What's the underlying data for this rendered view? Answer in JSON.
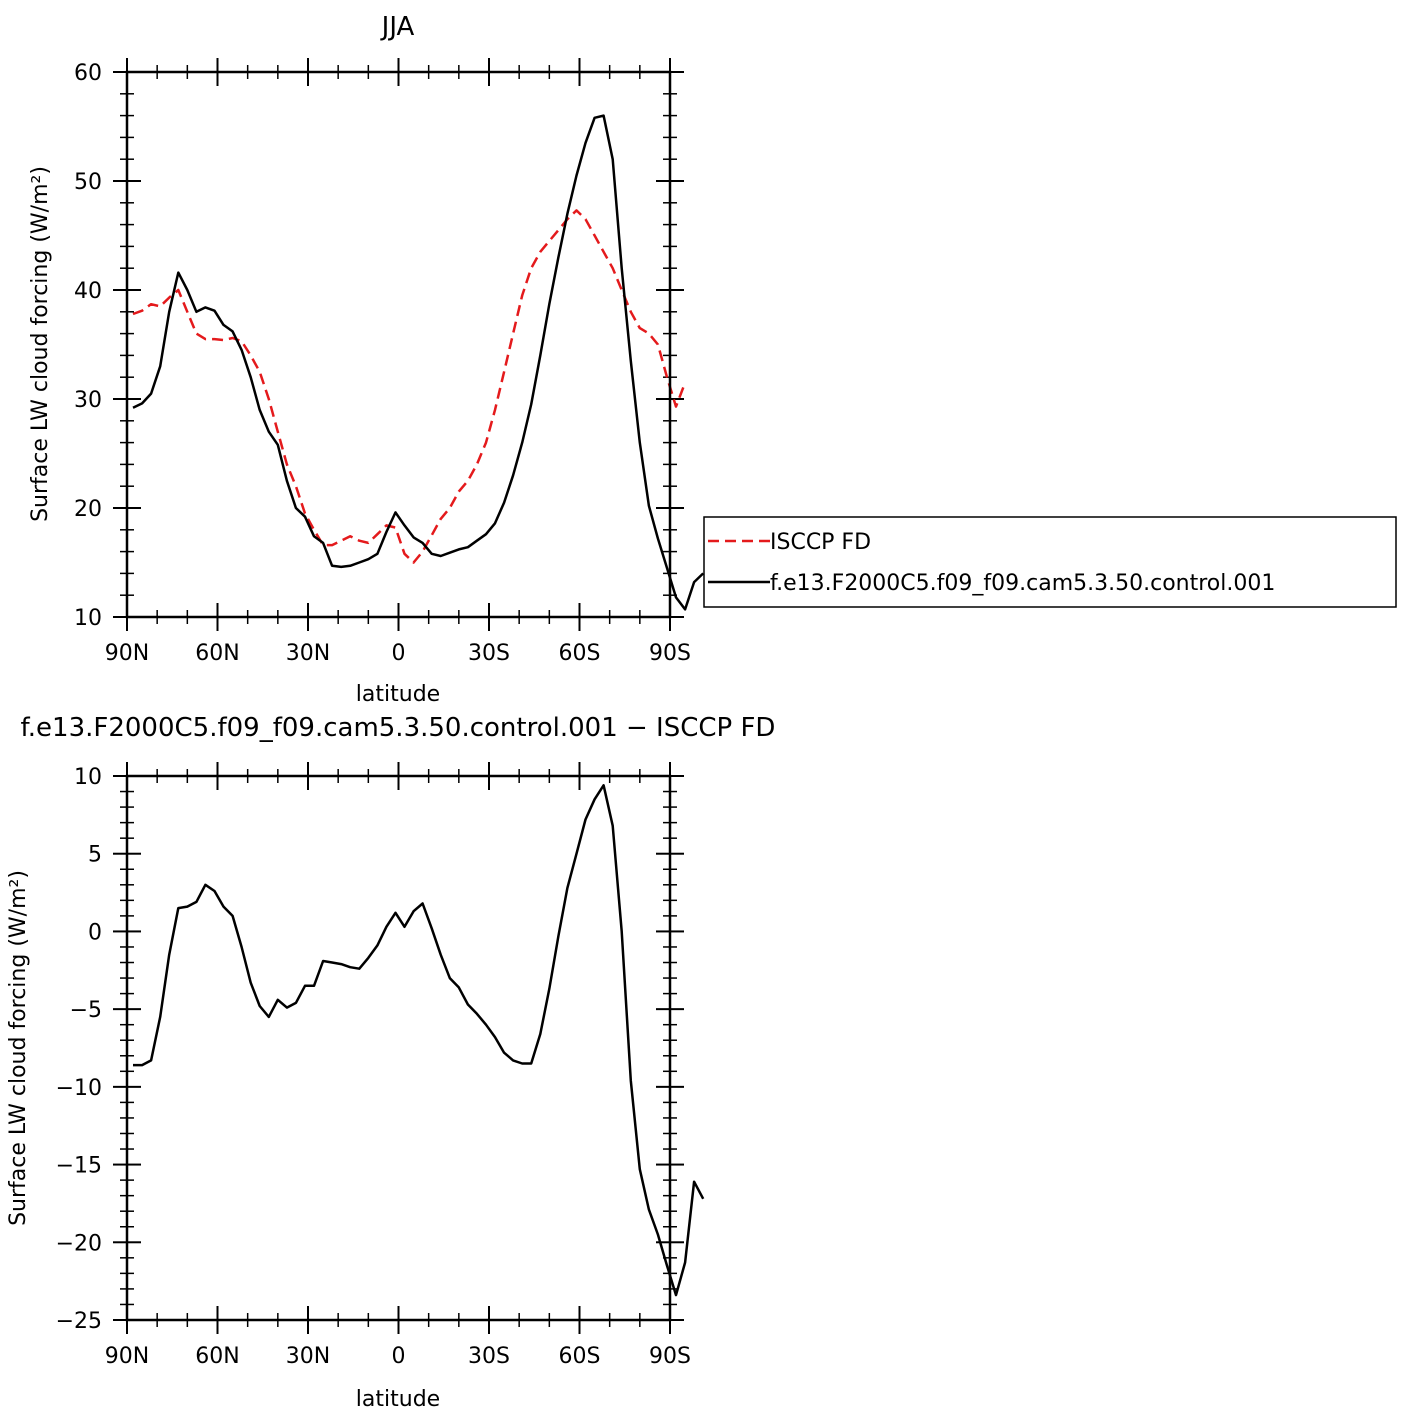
{
  "chart_data": [
    {
      "type": "line",
      "title": "JJA",
      "xlabel": "latitude",
      "ylabel": "Surface LW cloud forcing (W/m²)",
      "xlim": [
        90,
        -90
      ],
      "ylim": [
        10,
        60
      ],
      "xticks": [
        90,
        60,
        30,
        0,
        -30,
        -60,
        -90
      ],
      "xtick_labels": [
        "90N",
        "60N",
        "30N",
        "0",
        "30S",
        "60S",
        "90S"
      ],
      "yticks": [
        10,
        20,
        30,
        40,
        50,
        60
      ],
      "ytick_labels": [
        "10",
        "20",
        "30",
        "40",
        "50",
        "60"
      ],
      "legend": "right",
      "series": [
        {
          "name": "ISCCP FD",
          "color": "#e41a1c",
          "style": "dashed",
          "points": [
            [
              88,
              37.8
            ],
            [
              85,
              38.1
            ],
            [
              82,
              38.7
            ],
            [
              79,
              38.5
            ],
            [
              76,
              39.3
            ],
            [
              73,
              40
            ],
            [
              70,
              38
            ],
            [
              67,
              36
            ],
            [
              64,
              35.5
            ],
            [
              61,
              35.5
            ],
            [
              58,
              35.4
            ],
            [
              55,
              35.6
            ],
            [
              52,
              35.3
            ],
            [
              49,
              34
            ],
            [
              46,
              32.5
            ],
            [
              43,
              30
            ],
            [
              40,
              27
            ],
            [
              37,
              24
            ],
            [
              34,
              22
            ],
            [
              31,
              19.5
            ],
            [
              28,
              18
            ],
            [
              25,
              16.6
            ],
            [
              22,
              16.6
            ],
            [
              19,
              17
            ],
            [
              16,
              17.4
            ],
            [
              13,
              17
            ],
            [
              10,
              16.8
            ],
            [
              7,
              17.6
            ],
            [
              4,
              18.4
            ],
            [
              1,
              18.2
            ],
            [
              -2,
              15.8
            ],
            [
              -5,
              15
            ],
            [
              -8,
              16
            ],
            [
              -11,
              17.5
            ],
            [
              -14,
              19
            ],
            [
              -17,
              20
            ],
            [
              -20,
              21.5
            ],
            [
              -23,
              22.5
            ],
            [
              -26,
              24
            ],
            [
              -29,
              26
            ],
            [
              -32,
              29
            ],
            [
              -35,
              32.5
            ],
            [
              -38,
              36
            ],
            [
              -41,
              39.5
            ],
            [
              -44,
              42
            ],
            [
              -47,
              43.5
            ],
            [
              -50,
              44.5
            ],
            [
              -53,
              45.5
            ],
            [
              -56,
              46.5
            ],
            [
              -59,
              47.3
            ],
            [
              -62,
              46.5
            ],
            [
              -65,
              45
            ],
            [
              -68,
              43.5
            ],
            [
              -71,
              42
            ],
            [
              -74,
              40
            ],
            [
              -77,
              38
            ],
            [
              -80,
              36.5
            ],
            [
              -83,
              36
            ],
            [
              -86,
              35
            ],
            [
              -89,
              32
            ],
            [
              -92,
              29.3
            ],
            [
              -95,
              31.5
            ]
          ]
        },
        {
          "name": "f.e13.F2000C5.f09_f09.cam5.3.50.control.001",
          "color": "#000000",
          "style": "solid",
          "points": [
            [
              88,
              29.2
            ],
            [
              85,
              29.6
            ],
            [
              82,
              30.5
            ],
            [
              79,
              33
            ],
            [
              76,
              38
            ],
            [
              73,
              41.6
            ],
            [
              70,
              40
            ],
            [
              67,
              38
            ],
            [
              64,
              38.4
            ],
            [
              61,
              38.1
            ],
            [
              58,
              36.8
            ],
            [
              55,
              36.2
            ],
            [
              52,
              34.5
            ],
            [
              49,
              32
            ],
            [
              46,
              29
            ],
            [
              43,
              27
            ],
            [
              40,
              25.8
            ],
            [
              37,
              22.5
            ],
            [
              34,
              20
            ],
            [
              31,
              19.2
            ],
            [
              28,
              17.4
            ],
            [
              25,
              16.8
            ],
            [
              22,
              14.7
            ],
            [
              19,
              14.6
            ],
            [
              16,
              14.7
            ],
            [
              13,
              15
            ],
            [
              10,
              15.3
            ],
            [
              7,
              15.8
            ],
            [
              4,
              17.8
            ],
            [
              1,
              19.6
            ],
            [
              -2,
              18.4
            ],
            [
              -5,
              17.3
            ],
            [
              -8,
              16.8
            ],
            [
              -11,
              15.8
            ],
            [
              -14,
              15.6
            ],
            [
              -17,
              15.9
            ],
            [
              -20,
              16.2
            ],
            [
              -23,
              16.4
            ],
            [
              -26,
              17
            ],
            [
              -29,
              17.6
            ],
            [
              -32,
              18.6
            ],
            [
              -35,
              20.5
            ],
            [
              -38,
              23
            ],
            [
              -41,
              26
            ],
            [
              -44,
              29.5
            ],
            [
              -47,
              34
            ],
            [
              -50,
              38.7
            ],
            [
              -53,
              43
            ],
            [
              -56,
              47
            ],
            [
              -59,
              50.5
            ],
            [
              -62,
              53.5
            ],
            [
              -65,
              55.8
            ],
            [
              -68,
              56
            ],
            [
              -71,
              52
            ],
            [
              -74,
              42
            ],
            [
              -77,
              33.5
            ],
            [
              -80,
              26
            ],
            [
              -83,
              20.2
            ],
            [
              -86,
              17.2
            ],
            [
              -89,
              14.5
            ],
            [
              -92,
              11.8
            ],
            [
              -95,
              10.7
            ],
            [
              -98,
              13.2
            ],
            [
              -101,
              14
            ]
          ]
        }
      ]
    },
    {
      "type": "line",
      "title": "f.e13.F2000C5.f09_f09.cam5.3.50.control.001 − ISCCP FD",
      "xlabel": "latitude",
      "ylabel": "Surface LW cloud forcing (W/m²)",
      "xlim": [
        90,
        -90
      ],
      "ylim": [
        -25,
        10
      ],
      "xticks": [
        90,
        60,
        30,
        0,
        -30,
        -60,
        -90
      ],
      "xtick_labels": [
        "90N",
        "60N",
        "30N",
        "0",
        "30S",
        "60S",
        "90S"
      ],
      "yticks": [
        -25,
        -20,
        -15,
        -10,
        -5,
        0,
        5,
        10
      ],
      "ytick_labels": [
        "−25",
        "−20",
        "−15",
        "−10",
        "−5",
        "0",
        "5",
        "10"
      ],
      "series": [
        {
          "name": "",
          "color": "#000000",
          "style": "solid",
          "points": [
            [
              88,
              -8.6
            ],
            [
              85,
              -8.6
            ],
            [
              82,
              -8.3
            ],
            [
              79,
              -5.5
            ],
            [
              76,
              -1.5
            ],
            [
              73,
              1.5
            ],
            [
              70,
              1.6
            ],
            [
              67,
              1.9
            ],
            [
              64,
              3
            ],
            [
              61,
              2.6
            ],
            [
              58,
              1.6
            ],
            [
              55,
              1
            ],
            [
              52,
              -1
            ],
            [
              49,
              -3.3
            ],
            [
              46,
              -4.8
            ],
            [
              43,
              -5.5
            ],
            [
              40,
              -4.4
            ],
            [
              37,
              -4.9
            ],
            [
              34,
              -4.6
            ],
            [
              31,
              -3.5
            ],
            [
              28,
              -3.5
            ],
            [
              25,
              -1.9
            ],
            [
              22,
              -2
            ],
            [
              19,
              -2.1
            ],
            [
              16,
              -2.3
            ],
            [
              13,
              -2.4
            ],
            [
              10,
              -1.7
            ],
            [
              7,
              -0.9
            ],
            [
              4,
              0.3
            ],
            [
              1,
              1.2
            ],
            [
              -2,
              0.3
            ],
            [
              -5,
              1.3
            ],
            [
              -8,
              1.8
            ],
            [
              -11,
              0.2
            ],
            [
              -14,
              -1.5
            ],
            [
              -17,
              -3
            ],
            [
              -20,
              -3.6
            ],
            [
              -23,
              -4.7
            ],
            [
              -26,
              -5.3
            ],
            [
              -29,
              -6
            ],
            [
              -32,
              -6.8
            ],
            [
              -35,
              -7.8
            ],
            [
              -38,
              -8.3
            ],
            [
              -41,
              -8.5
            ],
            [
              -44,
              -8.5
            ],
            [
              -47,
              -6.6
            ],
            [
              -50,
              -3.7
            ],
            [
              -53,
              -0.3
            ],
            [
              -56,
              2.8
            ],
            [
              -59,
              5
            ],
            [
              -62,
              7.2
            ],
            [
              -65,
              8.5
            ],
            [
              -68,
              9.4
            ],
            [
              -71,
              6.8
            ],
            [
              -74,
              0
            ],
            [
              -77,
              -9.6
            ],
            [
              -80,
              -15.3
            ],
            [
              -83,
              -17.9
            ],
            [
              -86,
              -19.5
            ],
            [
              -89,
              -21.5
            ],
            [
              -92,
              -23.4
            ],
            [
              -95,
              -21.3
            ],
            [
              -98,
              -16.1
            ],
            [
              -101,
              -17.2
            ]
          ]
        }
      ]
    }
  ]
}
